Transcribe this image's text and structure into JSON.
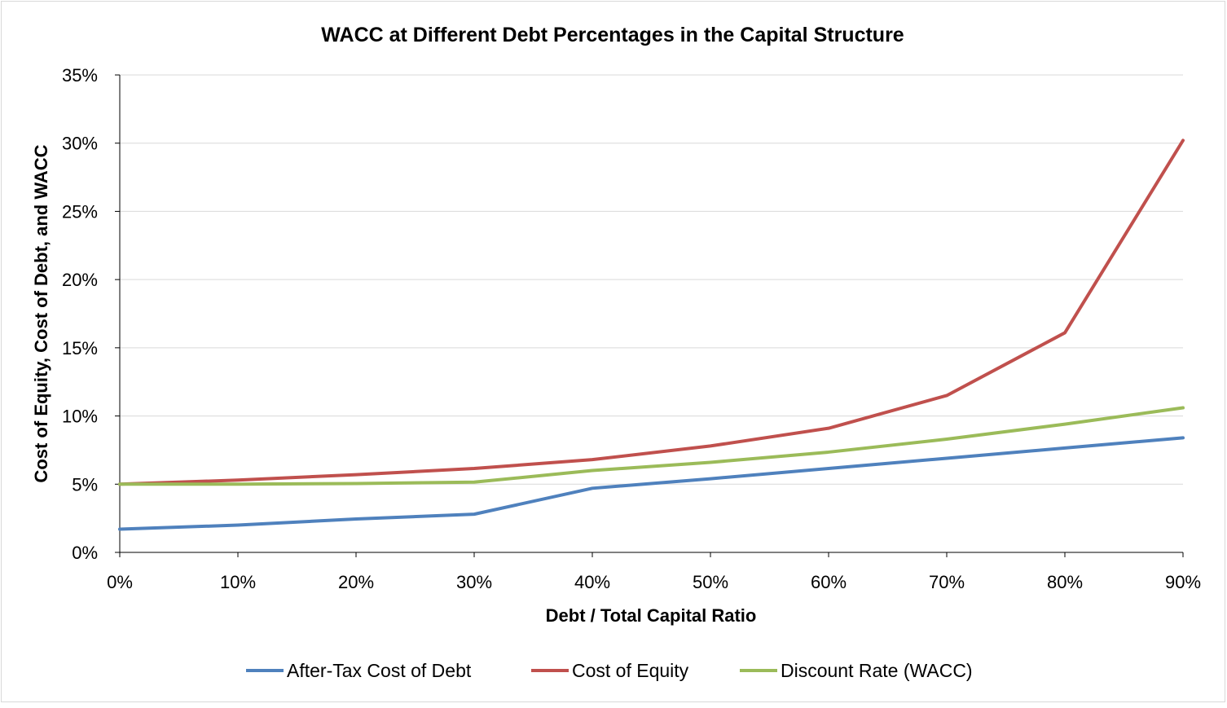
{
  "chart_data": {
    "type": "line",
    "title": "WACC at Different Debt Percentages in the Capital Structure",
    "xlabel": "Debt / Total Capital Ratio",
    "ylabel": "Cost of Equity, Cost of Debt, and WACC",
    "categories": [
      "0%",
      "10%",
      "20%",
      "30%",
      "40%",
      "50%",
      "60%",
      "70%",
      "80%",
      "90%"
    ],
    "y_ticks": [
      "0%",
      "5%",
      "10%",
      "15%",
      "20%",
      "25%",
      "30%",
      "35%"
    ],
    "ylim": [
      0,
      35
    ],
    "grid": true,
    "legend_position": "bottom",
    "series": [
      {
        "name": "After-Tax Cost of Debt",
        "color": "#4F81BD",
        "values": [
          1.7,
          2.0,
          2.45,
          2.8,
          4.7,
          5.4,
          6.15,
          6.9,
          7.65,
          8.4
        ]
      },
      {
        "name": "Cost of Equity",
        "color": "#C0504D",
        "values": [
          5.0,
          5.3,
          5.7,
          6.15,
          6.8,
          7.8,
          9.1,
          11.5,
          16.1,
          30.2
        ]
      },
      {
        "name": "Discount Rate (WACC)",
        "color": "#9BBB59",
        "values": [
          5.0,
          5.0,
          5.05,
          5.15,
          6.0,
          6.6,
          7.35,
          8.3,
          9.4,
          10.6
        ]
      }
    ]
  }
}
